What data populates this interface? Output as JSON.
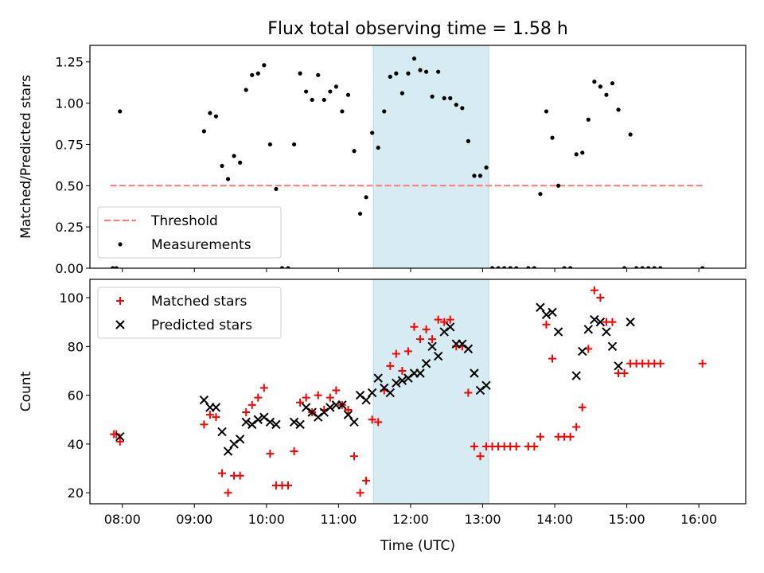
{
  "title": "Flux total observing time = 1.58 h",
  "colors": {
    "threshold": "#ff7777",
    "measurements": "#000000",
    "matched": "#ff0000",
    "predicted": "#000000",
    "window_fill": "#add8e6"
  },
  "chart_data": [
    {
      "type": "scatter",
      "ylabel": "Matched/Predicted stars",
      "ylim": [
        0,
        1.35
      ],
      "xlim": [
        "07:33",
        "16:39"
      ],
      "yticks": [
        "0.00",
        "0.25",
        "0.50",
        "0.75",
        "1.00",
        "1.25"
      ],
      "shaded_window": [
        "11:29",
        "13:05"
      ],
      "legend_position": "lower left",
      "series": [
        {
          "name": "Threshold",
          "style": "dashed-line",
          "points": [
            [
              "07:50",
              0.5
            ],
            [
              "16:05",
              0.5
            ]
          ]
        },
        {
          "name": "Measurements",
          "style": "dot",
          "points": [
            [
              "07:52",
              0
            ],
            [
              "07:55",
              0
            ],
            [
              "07:58",
              0.95
            ],
            [
              "09:08",
              0.83
            ],
            [
              "09:13",
              0.94
            ],
            [
              "09:18",
              0.92
            ],
            [
              "09:23",
              0.62
            ],
            [
              "09:28",
              0.54
            ],
            [
              "09:33",
              0.68
            ],
            [
              "09:38",
              0.64
            ],
            [
              "09:43",
              1.08
            ],
            [
              "09:48",
              1.17
            ],
            [
              "09:53",
              1.18
            ],
            [
              "09:58",
              1.23
            ],
            [
              "10:03",
              0.75
            ],
            [
              "10:08",
              0.48
            ],
            [
              "10:13",
              0
            ],
            [
              "10:18",
              0
            ],
            [
              "10:23",
              0.75
            ],
            [
              "10:28",
              1.18
            ],
            [
              "10:33",
              1.07
            ],
            [
              "10:38",
              1.02
            ],
            [
              "10:43",
              1.17
            ],
            [
              "10:48",
              1.02
            ],
            [
              "10:53",
              1.07
            ],
            [
              "10:58",
              1.1
            ],
            [
              "11:03",
              0.95
            ],
            [
              "11:08",
              1.05
            ],
            [
              "11:13",
              0.71
            ],
            [
              "11:18",
              0.33
            ],
            [
              "11:23",
              0.43
            ],
            [
              "11:28",
              0.82
            ],
            [
              "11:33",
              0.73
            ],
            [
              "11:38",
              0.95
            ],
            [
              "11:43",
              1.16
            ],
            [
              "11:48",
              1.18
            ],
            [
              "11:53",
              1.06
            ],
            [
              "11:58",
              1.18
            ],
            [
              "12:03",
              1.27
            ],
            [
              "12:08",
              1.2
            ],
            [
              "12:13",
              1.19
            ],
            [
              "12:18",
              1.04
            ],
            [
              "12:23",
              1.19
            ],
            [
              "12:28",
              1.03
            ],
            [
              "12:33",
              1.03
            ],
            [
              "12:38",
              0.99
            ],
            [
              "12:43",
              0.97
            ],
            [
              "12:48",
              0.77
            ],
            [
              "12:53",
              0.56
            ],
            [
              "12:58",
              0.56
            ],
            [
              "13:03",
              0.61
            ],
            [
              "13:08",
              0
            ],
            [
              "13:13",
              0
            ],
            [
              "13:18",
              0
            ],
            [
              "13:23",
              0
            ],
            [
              "13:28",
              0
            ],
            [
              "13:38",
              0
            ],
            [
              "13:43",
              0
            ],
            [
              "13:48",
              0.45
            ],
            [
              "13:53",
              0.95
            ],
            [
              "13:58",
              0.79
            ],
            [
              "14:03",
              0.5
            ],
            [
              "14:08",
              0
            ],
            [
              "14:13",
              0
            ],
            [
              "14:18",
              0.69
            ],
            [
              "14:23",
              0.7
            ],
            [
              "14:28",
              0.9
            ],
            [
              "14:33",
              1.13
            ],
            [
              "14:38",
              1.1
            ],
            [
              "14:43",
              1.05
            ],
            [
              "14:48",
              1.12
            ],
            [
              "14:53",
              0.96
            ],
            [
              "14:58",
              0
            ],
            [
              "15:03",
              0.81
            ],
            [
              "15:08",
              0
            ],
            [
              "15:13",
              0
            ],
            [
              "15:18",
              0
            ],
            [
              "15:23",
              0
            ],
            [
              "15:28",
              0
            ],
            [
              "16:03",
              0
            ]
          ]
        }
      ]
    },
    {
      "type": "scatter",
      "ylabel": "Count",
      "xlabel": "Time (UTC)",
      "ylim": [
        15.5,
        107.5
      ],
      "xlim": [
        "07:33",
        "16:39"
      ],
      "yticks": [
        "20",
        "40",
        "60",
        "80",
        "100"
      ],
      "xticks": [
        "08:00",
        "09:00",
        "10:00",
        "11:00",
        "12:00",
        "13:00",
        "14:00",
        "15:00",
        "16:00"
      ],
      "shaded_window": [
        "11:29",
        "13:05"
      ],
      "legend_position": "upper left",
      "series": [
        {
          "name": "Matched stars",
          "style": "plus",
          "points": [
            [
              "07:53",
              44
            ],
            [
              "07:55",
              44
            ],
            [
              "07:58",
              41
            ],
            [
              "09:08",
              48
            ],
            [
              "09:13",
              52
            ],
            [
              "09:18",
              51
            ],
            [
              "09:23",
              28
            ],
            [
              "09:28",
              20
            ],
            [
              "09:33",
              27
            ],
            [
              "09:38",
              27
            ],
            [
              "09:43",
              53
            ],
            [
              "09:48",
              56
            ],
            [
              "09:53",
              59
            ],
            [
              "09:58",
              63
            ],
            [
              "10:03",
              36
            ],
            [
              "10:08",
              23
            ],
            [
              "10:13",
              23
            ],
            [
              "10:18",
              23
            ],
            [
              "10:23",
              37
            ],
            [
              "10:28",
              57
            ],
            [
              "10:33",
              59
            ],
            [
              "10:38",
              53
            ],
            [
              "10:43",
              60
            ],
            [
              "10:48",
              54
            ],
            [
              "10:53",
              59
            ],
            [
              "10:58",
              62
            ],
            [
              "11:03",
              56
            ],
            [
              "11:08",
              54
            ],
            [
              "11:13",
              35
            ],
            [
              "11:18",
              20
            ],
            [
              "11:23",
              25
            ],
            [
              "11:28",
              50
            ],
            [
              "11:33",
              49
            ],
            [
              "11:38",
              62
            ],
            [
              "11:43",
              72
            ],
            [
              "11:48",
              77
            ],
            [
              "11:53",
              70
            ],
            [
              "11:58",
              78
            ],
            [
              "12:03",
              88
            ],
            [
              "12:08",
              83
            ],
            [
              "12:13",
              87
            ],
            [
              "12:18",
              83
            ],
            [
              "12:23",
              91
            ],
            [
              "12:28",
              90
            ],
            [
              "12:33",
              91
            ],
            [
              "12:38",
              80
            ],
            [
              "12:43",
              80
            ],
            [
              "12:48",
              61
            ],
            [
              "12:53",
              39
            ],
            [
              "12:58",
              35
            ],
            [
              "13:03",
              39
            ],
            [
              "13:08",
              39
            ],
            [
              "13:13",
              39
            ],
            [
              "13:18",
              39
            ],
            [
              "13:23",
              39
            ],
            [
              "13:28",
              39
            ],
            [
              "13:38",
              39
            ],
            [
              "13:43",
              39
            ],
            [
              "13:48",
              43
            ],
            [
              "13:53",
              89
            ],
            [
              "13:58",
              75
            ],
            [
              "14:03",
              43
            ],
            [
              "14:08",
              43
            ],
            [
              "14:13",
              43
            ],
            [
              "14:18",
              47
            ],
            [
              "14:23",
              55
            ],
            [
              "14:28",
              79
            ],
            [
              "14:33",
              103
            ],
            [
              "14:38",
              100
            ],
            [
              "14:43",
              90
            ],
            [
              "14:48",
              90
            ],
            [
              "14:53",
              69
            ],
            [
              "14:58",
              69
            ],
            [
              "15:03",
              73
            ],
            [
              "15:08",
              73
            ],
            [
              "15:13",
              73
            ],
            [
              "15:18",
              73
            ],
            [
              "15:23",
              73
            ],
            [
              "15:28",
              73
            ],
            [
              "16:03",
              73
            ]
          ]
        },
        {
          "name": "Predicted stars",
          "style": "x",
          "points": [
            [
              "07:58",
              43
            ],
            [
              "09:08",
              58
            ],
            [
              "09:13",
              55
            ],
            [
              "09:18",
              55
            ],
            [
              "09:23",
              45
            ],
            [
              "09:28",
              37
            ],
            [
              "09:33",
              40
            ],
            [
              "09:38",
              42
            ],
            [
              "09:43",
              49
            ],
            [
              "09:48",
              48
            ],
            [
              "09:53",
              50
            ],
            [
              "09:58",
              51
            ],
            [
              "10:03",
              49
            ],
            [
              "10:08",
              48
            ],
            [
              "10:23",
              49
            ],
            [
              "10:28",
              48
            ],
            [
              "10:33",
              55
            ],
            [
              "10:38",
              53
            ],
            [
              "10:43",
              51
            ],
            [
              "10:48",
              53
            ],
            [
              "10:53",
              55
            ],
            [
              "10:58",
              56
            ],
            [
              "11:03",
              56
            ],
            [
              "11:08",
              52
            ],
            [
              "11:13",
              49
            ],
            [
              "11:18",
              60
            ],
            [
              "11:23",
              58
            ],
            [
              "11:28",
              61
            ],
            [
              "11:33",
              67
            ],
            [
              "11:38",
              63
            ],
            [
              "11:43",
              61
            ],
            [
              "11:48",
              65
            ],
            [
              "11:53",
              66
            ],
            [
              "11:58",
              67
            ],
            [
              "12:03",
              69
            ],
            [
              "12:08",
              69
            ],
            [
              "12:13",
              73
            ],
            [
              "12:18",
              80
            ],
            [
              "12:23",
              76
            ],
            [
              "12:28",
              86
            ],
            [
              "12:33",
              88
            ],
            [
              "12:38",
              81
            ],
            [
              "12:43",
              81
            ],
            [
              "12:48",
              79
            ],
            [
              "12:53",
              69
            ],
            [
              "12:58",
              62
            ],
            [
              "13:03",
              64
            ],
            [
              "13:48",
              96
            ],
            [
              "13:53",
              93
            ],
            [
              "13:58",
              94
            ],
            [
              "14:03",
              86
            ],
            [
              "14:18",
              68
            ],
            [
              "14:23",
              78
            ],
            [
              "14:28",
              87
            ],
            [
              "14:33",
              91
            ],
            [
              "14:38",
              90
            ],
            [
              "14:43",
              86
            ],
            [
              "14:48",
              80
            ],
            [
              "14:53",
              72
            ],
            [
              "15:03",
              90
            ]
          ]
        }
      ]
    }
  ]
}
